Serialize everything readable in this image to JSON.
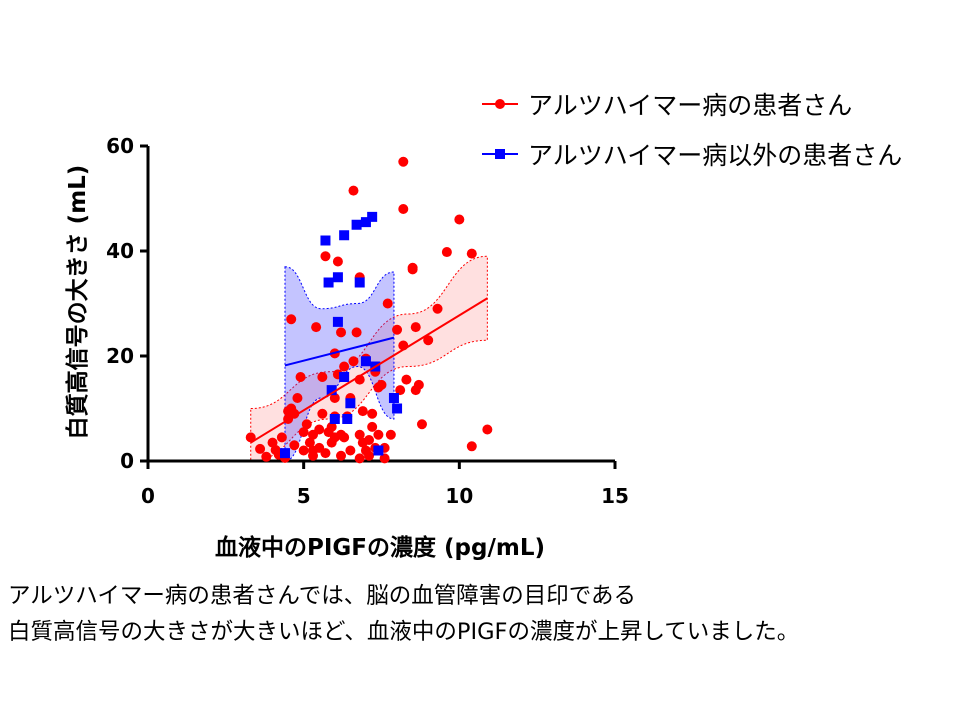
{
  "chart_data": {
    "type": "scatter",
    "xlabel": "血液中のPIGFの濃度 (pg/mL)",
    "ylabel": "白質高信号の大きさ (mL)",
    "xlim": [
      0,
      15
    ],
    "ylim": [
      0,
      60
    ],
    "x_ticks": [
      "0",
      "5",
      "10",
      "15"
    ],
    "y_ticks": [
      "0",
      "20",
      "40",
      "60"
    ],
    "legend_position": "top-right",
    "series": [
      {
        "name": "アルツハイマー病の患者さん",
        "color": "#ff0000",
        "marker": "circle",
        "fit_line": {
          "x": [
            3.3,
            10.9
          ],
          "y": [
            3.5,
            31.0
          ]
        },
        "band": {
          "lower": [
            0,
            8,
            18,
            23
          ],
          "upper": [
            10,
            17,
            28,
            39
          ]
        },
        "points": [
          [
            3.3,
            4.5
          ],
          [
            3.6,
            2.3
          ],
          [
            3.8,
            0.8
          ],
          [
            4.0,
            3.5
          ],
          [
            4.1,
            2.1
          ],
          [
            4.2,
            1.2
          ],
          [
            4.3,
            4.5
          ],
          [
            4.4,
            0.6
          ],
          [
            4.5,
            8.0
          ],
          [
            4.5,
            9.5
          ],
          [
            4.6,
            10.0
          ],
          [
            4.6,
            27.0
          ],
          [
            4.7,
            3.0
          ],
          [
            4.7,
            9.0
          ],
          [
            4.8,
            12.0
          ],
          [
            4.9,
            16.0
          ],
          [
            5.0,
            2.0
          ],
          [
            5.0,
            5.5
          ],
          [
            5.1,
            7.0
          ],
          [
            5.2,
            3.5
          ],
          [
            5.3,
            5.0
          ],
          [
            5.3,
            2.0
          ],
          [
            5.3,
            1.0
          ],
          [
            5.4,
            25.5
          ],
          [
            5.5,
            6.0
          ],
          [
            5.5,
            2.5
          ],
          [
            5.6,
            9.0
          ],
          [
            5.6,
            16.0
          ],
          [
            5.7,
            1.5
          ],
          [
            5.7,
            39.0
          ],
          [
            5.8,
            5.5
          ],
          [
            5.9,
            6.5
          ],
          [
            5.9,
            3.5
          ],
          [
            6.0,
            4.5
          ],
          [
            6.0,
            12.0
          ],
          [
            6.0,
            20.5
          ],
          [
            6.0,
            8.5
          ],
          [
            6.1,
            38.0
          ],
          [
            6.1,
            16.5
          ],
          [
            6.2,
            5.0
          ],
          [
            6.2,
            1.0
          ],
          [
            6.2,
            24.5
          ],
          [
            6.3,
            18.0
          ],
          [
            6.3,
            4.5
          ],
          [
            6.4,
            8.5
          ],
          [
            6.5,
            2.0
          ],
          [
            6.5,
            12.0
          ],
          [
            6.6,
            51.5
          ],
          [
            6.6,
            19.0
          ],
          [
            6.7,
            24.5
          ],
          [
            6.8,
            5.0
          ],
          [
            6.8,
            0.5
          ],
          [
            6.8,
            15.5
          ],
          [
            6.8,
            35.0
          ],
          [
            6.9,
            3.5
          ],
          [
            6.9,
            9.5
          ],
          [
            7.0,
            19.5
          ],
          [
            7.0,
            2.0
          ],
          [
            7.1,
            4.0
          ],
          [
            7.1,
            1.0
          ],
          [
            7.2,
            6.5
          ],
          [
            7.2,
            9.0
          ],
          [
            7.3,
            2.5
          ],
          [
            7.3,
            17.0
          ],
          [
            7.4,
            5.0
          ],
          [
            7.4,
            14.0
          ],
          [
            7.5,
            14.5
          ],
          [
            7.6,
            0.5
          ],
          [
            7.6,
            2.5
          ],
          [
            7.7,
            30.0
          ],
          [
            7.8,
            5.0
          ],
          [
            8.0,
            25.0
          ],
          [
            8.1,
            13.5
          ],
          [
            8.2,
            22.0
          ],
          [
            8.2,
            57.0
          ],
          [
            8.2,
            48.0
          ],
          [
            8.3,
            15.5
          ],
          [
            8.5,
            36.5
          ],
          [
            8.5,
            36.8
          ],
          [
            8.6,
            25.5
          ],
          [
            8.6,
            13.5
          ],
          [
            8.7,
            14.5
          ],
          [
            8.8,
            7.0
          ],
          [
            9.0,
            23.0
          ],
          [
            9.3,
            29.0
          ],
          [
            9.6,
            39.8
          ],
          [
            10.0,
            46.0
          ],
          [
            10.4,
            39.5
          ],
          [
            10.4,
            2.8
          ],
          [
            10.9,
            6.0
          ]
        ]
      },
      {
        "name": "アルツハイマー病以外の患者さん",
        "color": "#0000ff",
        "marker": "square",
        "fit_line": {
          "x": [
            4.4,
            7.9
          ],
          "y": [
            18.2,
            23.5
          ]
        },
        "band": {
          "lower": [
            0,
            12,
            18,
            8
          ],
          "upper": [
            37,
            29,
            30,
            36
          ]
        },
        "points": [
          [
            4.4,
            1.5
          ],
          [
            5.7,
            42.0
          ],
          [
            5.8,
            34.0
          ],
          [
            5.9,
            13.5
          ],
          [
            6.0,
            8.0
          ],
          [
            6.1,
            26.5
          ],
          [
            6.1,
            35.0
          ],
          [
            6.3,
            43.0
          ],
          [
            6.3,
            16.0
          ],
          [
            6.4,
            8.0
          ],
          [
            6.5,
            11.0
          ],
          [
            6.7,
            45.0
          ],
          [
            6.8,
            34.0
          ],
          [
            7.0,
            19.0
          ],
          [
            7.0,
            45.5
          ],
          [
            7.2,
            46.5
          ],
          [
            7.3,
            18.0
          ],
          [
            7.4,
            2.0
          ],
          [
            7.9,
            12.0
          ],
          [
            8.0,
            10.0
          ]
        ]
      }
    ]
  },
  "caption": {
    "line1": "アルツハイマー病の患者さんでは、脳の血管障害の目印である",
    "line2": "白質高信号の大きさが大きいほど、血液中のPIGFの濃度が上昇していました。"
  }
}
